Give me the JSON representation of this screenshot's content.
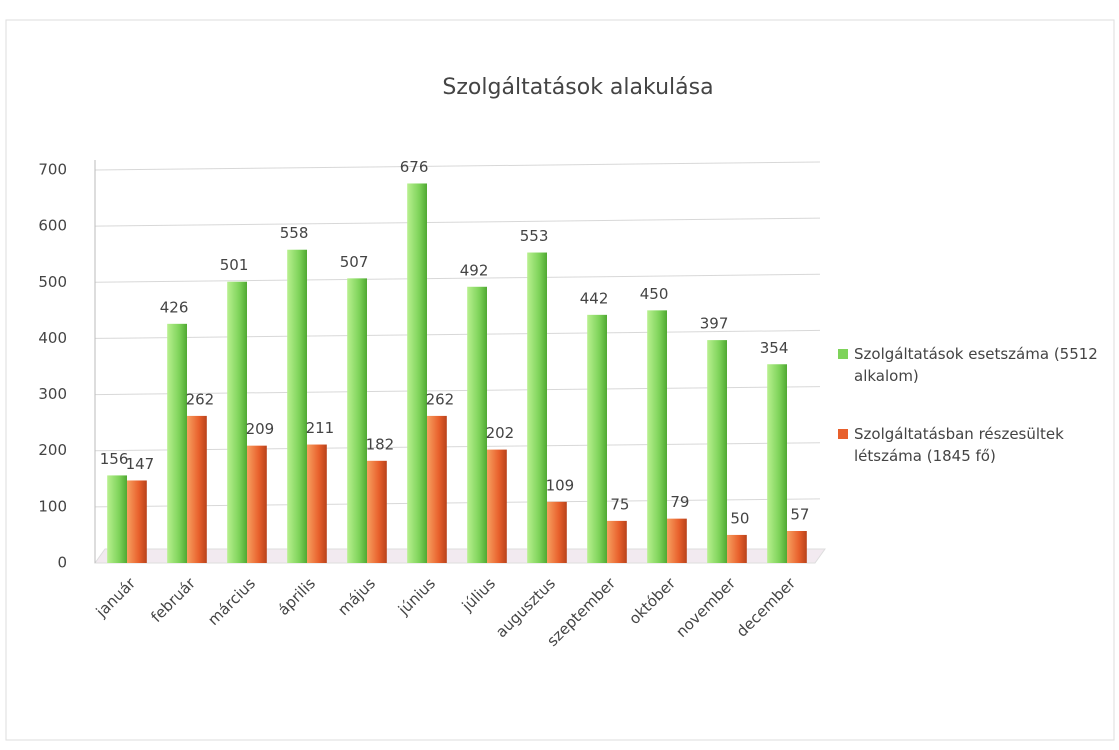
{
  "chart_data": {
    "type": "bar",
    "title": "Szolgáltatások alakulása",
    "categories": [
      "január",
      "február",
      "március",
      "április",
      "május",
      "június",
      "július",
      "augusztus",
      "szeptember",
      "október",
      "november",
      "december"
    ],
    "series": [
      {
        "name": "Szolgáltatások esetszáma (5512 alkalom)",
        "color": "#7ed35a",
        "values": [
          156,
          426,
          501,
          558,
          507,
          676,
          492,
          553,
          442,
          450,
          397,
          354
        ]
      },
      {
        "name": "Szolgáltatásban részesültek létszáma (1845 fő)",
        "color": "#e8602c",
        "values": [
          147,
          262,
          209,
          211,
          182,
          262,
          202,
          109,
          75,
          79,
          50,
          57
        ]
      }
    ],
    "ylim": [
      0,
      700
    ],
    "yticks": [
      0,
      100,
      200,
      300,
      400,
      500,
      600,
      700
    ],
    "grid": true,
    "legend": "right"
  }
}
